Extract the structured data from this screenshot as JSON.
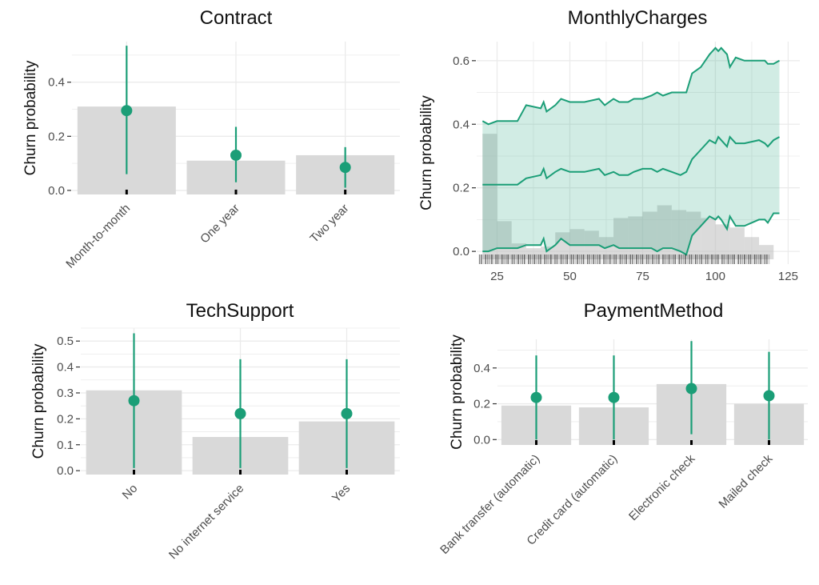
{
  "chart_data": [
    {
      "type": "bar",
      "title": "Contract",
      "ylabel": "Churn probability",
      "xlabel": "",
      "ylim": [
        -0.015,
        0.55
      ],
      "yticks": [
        0.0,
        0.2,
        0.4
      ],
      "ytick_labels": [
        "0.0",
        "0.2",
        "0.4"
      ],
      "categories": [
        "Month-to-month",
        "One year",
        "Two year"
      ],
      "bar_values": [
        0.31,
        0.11,
        0.13
      ],
      "point_values": [
        0.295,
        0.13,
        0.085
      ],
      "interval_low": [
        0.06,
        0.03,
        0.01
      ],
      "interval_high": [
        0.535,
        0.235,
        0.16
      ],
      "grid": true,
      "bar_color": "#d9d9d9",
      "point_color": "#1b9e77"
    },
    {
      "type": "area",
      "title": "MonthlyCharges",
      "ylabel": "Churn probability",
      "xlabel": "",
      "xlim": [
        18,
        129
      ],
      "ylim": [
        -0.04,
        0.66
      ],
      "xticks": [
        25,
        50,
        75,
        100,
        125
      ],
      "xtick_labels": [
        "25",
        "50",
        "75",
        "100",
        "125"
      ],
      "yticks": [
        0.0,
        0.2,
        0.4,
        0.6
      ],
      "ytick_labels": [
        "0.0",
        "0.2",
        "0.4",
        "0.6"
      ],
      "x": [
        20,
        22,
        25,
        30,
        32,
        35,
        40,
        41,
        42,
        45,
        47,
        50,
        55,
        60,
        62,
        65,
        67,
        70,
        72,
        75,
        78,
        80,
        82,
        85,
        88,
        90,
        92,
        95,
        98,
        100,
        101,
        102,
        104,
        105,
        107,
        110,
        115,
        117,
        118,
        120,
        122
      ],
      "series": [
        {
          "name": "",
          "values": [
            0.41,
            0.4,
            0.41,
            0.41,
            0.41,
            0.46,
            0.45,
            0.47,
            0.44,
            0.46,
            0.48,
            0.47,
            0.47,
            0.48,
            0.46,
            0.48,
            0.47,
            0.47,
            0.48,
            0.48,
            0.49,
            0.5,
            0.49,
            0.5,
            0.5,
            0.5,
            0.56,
            0.58,
            0.62,
            0.64,
            0.63,
            0.64,
            0.62,
            0.58,
            0.61,
            0.6,
            0.6,
            0.6,
            0.59,
            0.59,
            0.6
          ]
        },
        {
          "name": "",
          "values": [
            0.21,
            0.21,
            0.21,
            0.21,
            0.21,
            0.23,
            0.24,
            0.26,
            0.23,
            0.25,
            0.26,
            0.25,
            0.25,
            0.26,
            0.24,
            0.25,
            0.24,
            0.24,
            0.25,
            0.26,
            0.26,
            0.25,
            0.26,
            0.25,
            0.24,
            0.25,
            0.29,
            0.32,
            0.35,
            0.34,
            0.36,
            0.35,
            0.33,
            0.36,
            0.34,
            0.34,
            0.35,
            0.34,
            0.33,
            0.35,
            0.36
          ]
        },
        {
          "name": "",
          "values": [
            0.0,
            0.0,
            0.01,
            0.01,
            0.01,
            0.02,
            0.02,
            0.04,
            0.0,
            0.02,
            0.04,
            0.02,
            0.02,
            0.02,
            0.01,
            0.02,
            0.01,
            0.01,
            0.01,
            0.01,
            0.01,
            0.0,
            0.01,
            0.01,
            0.0,
            -0.01,
            0.05,
            0.08,
            0.11,
            0.1,
            0.11,
            0.1,
            0.07,
            0.11,
            0.08,
            0.08,
            0.1,
            0.1,
            0.09,
            0.12,
            0.12
          ]
        }
      ],
      "histogram": {
        "bin_edges": [
          20,
          25,
          30,
          35,
          40,
          45,
          50,
          55,
          60,
          65,
          70,
          75,
          80,
          85,
          90,
          95,
          100,
          105,
          110,
          115,
          120
        ],
        "values": [
          0.37,
          0.095,
          0.025,
          0.01,
          0.015,
          0.06,
          0.07,
          0.065,
          0.045,
          0.105,
          0.11,
          0.125,
          0.145,
          0.13,
          0.125,
          0.105,
          0.085,
          0.075,
          0.045,
          0.02
        ]
      },
      "grid": true,
      "band_color": "#1b9e77",
      "histogram_color": "#d9d9d9"
    },
    {
      "type": "bar",
      "title": "TechSupport",
      "ylabel": "Churn probability",
      "xlabel": "",
      "ylim": [
        -0.015,
        0.55
      ],
      "yticks": [
        0.0,
        0.1,
        0.2,
        0.3,
        0.4,
        0.5
      ],
      "ytick_labels": [
        "0.0",
        "0.1",
        "0.2",
        "0.3",
        "0.4",
        "0.5"
      ],
      "categories": [
        "No",
        "No internet service",
        "Yes"
      ],
      "bar_values": [
        0.31,
        0.13,
        0.19
      ],
      "point_values": [
        0.27,
        0.22,
        0.22
      ],
      "interval_low": [
        0.01,
        0.01,
        0.01
      ],
      "interval_high": [
        0.53,
        0.43,
        0.43
      ],
      "grid": true,
      "bar_color": "#d9d9d9",
      "point_color": "#1b9e77"
    },
    {
      "type": "bar",
      "title": "PaymentMethod",
      "ylabel": "Churn probability",
      "xlabel": "",
      "ylim": [
        -0.03,
        0.56
      ],
      "yticks": [
        0.0,
        0.2,
        0.4
      ],
      "ytick_labels": [
        "0.0",
        "0.2",
        "0.4"
      ],
      "categories": [
        "Bank transfer (automatic)",
        "Credit card (automatic)",
        "Electronic check",
        "Mailed check"
      ],
      "bar_values": [
        0.19,
        0.18,
        0.31,
        0.2
      ],
      "point_values": [
        0.235,
        0.235,
        0.285,
        0.245
      ],
      "interval_low": [
        0.0,
        0.0,
        0.03,
        0.0
      ],
      "interval_high": [
        0.47,
        0.47,
        0.55,
        0.49
      ],
      "grid": true,
      "bar_color": "#d9d9d9",
      "point_color": "#1b9e77"
    }
  ]
}
